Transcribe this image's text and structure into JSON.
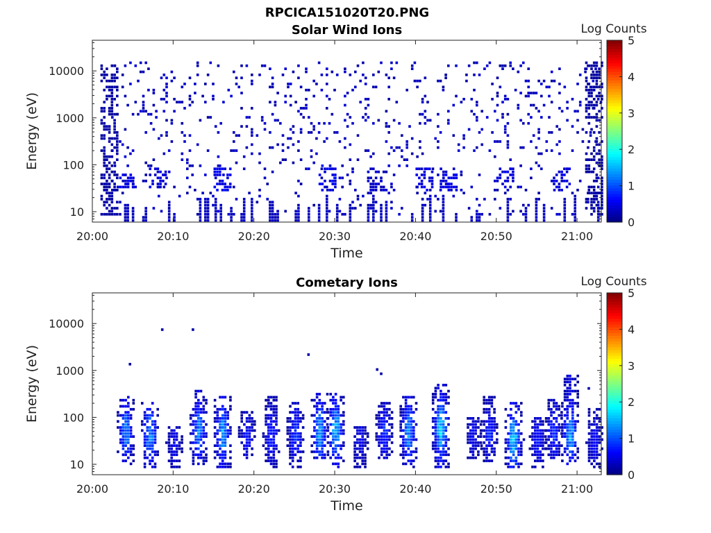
{
  "figure": {
    "title": "RPCICA151020T20.PNG"
  },
  "colorbar": {
    "label": "Log Counts",
    "range": [
      0,
      5
    ],
    "ticks": [
      "0",
      "1",
      "2",
      "3",
      "4",
      "5"
    ],
    "colormap": "jet"
  },
  "chart_data": [
    {
      "type": "heatmap",
      "title": "Solar Wind Ions",
      "xlabel": "Time",
      "ylabel": "Energy (eV)",
      "y_scale": "log",
      "y_range_eV": [
        6,
        45000
      ],
      "x_range": [
        "20:00",
        "21:03"
      ],
      "x_ticks": [
        "20:00",
        "20:10",
        "20:20",
        "20:30",
        "20:40",
        "20:50",
        "21:00"
      ],
      "y_ticks": [
        "10",
        "100",
        "1000",
        "10000"
      ],
      "data_start": "20:02",
      "data_end": "21:03",
      "description_points": [
        {
          "time": "20:02",
          "energy_range_eV": [
            7,
            12000
          ],
          "log_counts": 0.2
        },
        {
          "time": "20:04",
          "energy_range_eV": [
            30,
            60
          ],
          "log_counts": 0.5
        },
        {
          "time": "20:08",
          "energy_range_eV": [
            30,
            80
          ],
          "log_counts": 0.5
        },
        {
          "time": "20:16",
          "energy_range_eV": [
            25,
            90
          ],
          "log_counts": 0.6
        },
        {
          "time": "20:29",
          "energy_range_eV": [
            25,
            90
          ],
          "log_counts": 0.6
        },
        {
          "time": "20:35",
          "energy_range_eV": [
            20,
            70
          ],
          "log_counts": 0.4
        },
        {
          "time": "20:41",
          "energy_range_eV": [
            25,
            80
          ],
          "log_counts": 0.5
        },
        {
          "time": "20:44",
          "energy_range_eV": [
            25,
            80
          ],
          "log_counts": 0.5
        },
        {
          "time": "20:51",
          "energy_range_eV": [
            25,
            80
          ],
          "log_counts": 0.5
        },
        {
          "time": "20:58",
          "energy_range_eV": [
            25,
            80
          ],
          "log_counts": 0.5
        },
        {
          "time": "21:02",
          "energy_range_eV": [
            7,
            15000
          ],
          "log_counts": 0.2
        }
      ]
    },
    {
      "type": "heatmap",
      "title": "Cometary Ions",
      "xlabel": "Time",
      "ylabel": "Energy (eV)",
      "y_scale": "log",
      "y_range_eV": [
        6,
        45000
      ],
      "x_range": [
        "20:00",
        "21:03"
      ],
      "x_ticks": [
        "20:00",
        "20:10",
        "20:20",
        "20:30",
        "20:40",
        "20:50",
        "21:00"
      ],
      "y_ticks": [
        "10",
        "100",
        "1000",
        "10000"
      ],
      "bursts": [
        {
          "time": "20:04",
          "energy_range_eV": [
            9,
            250
          ],
          "peak_eV": 45,
          "peak_log_counts": 1.3
        },
        {
          "time": "20:07",
          "energy_range_eV": [
            7,
            200
          ],
          "peak_eV": 40,
          "peak_log_counts": 1.4
        },
        {
          "time": "20:10",
          "energy_range_eV": [
            7,
            60
          ],
          "peak_eV": 25,
          "peak_log_counts": 0.6
        },
        {
          "time": "20:13",
          "energy_range_eV": [
            9,
            350
          ],
          "peak_eV": 45,
          "peak_log_counts": 1.3
        },
        {
          "time": "20:16",
          "energy_range_eV": [
            8,
            300
          ],
          "peak_eV": 40,
          "peak_log_counts": 1.5
        },
        {
          "time": "20:19",
          "energy_range_eV": [
            12,
            120
          ],
          "peak_eV": 40,
          "peak_log_counts": 0.7
        },
        {
          "time": "20:22",
          "energy_range_eV": [
            8,
            250
          ],
          "peak_eV": 40,
          "peak_log_counts": 0.8
        },
        {
          "time": "20:25",
          "energy_range_eV": [
            8,
            200
          ],
          "peak_eV": 40,
          "peak_log_counts": 0.9
        },
        {
          "time": "20:28",
          "energy_range_eV": [
            12,
            300
          ],
          "peak_eV": 45,
          "peak_log_counts": 1.5
        },
        {
          "time": "20:30",
          "energy_range_eV": [
            8,
            300
          ],
          "peak_eV": 50,
          "peak_log_counts": 1.6
        },
        {
          "time": "20:33",
          "energy_range_eV": [
            8,
            60
          ],
          "peak_eV": 30,
          "peak_log_counts": 0.6
        },
        {
          "time": "20:36",
          "energy_range_eV": [
            12,
            200
          ],
          "peak_eV": 45,
          "peak_log_counts": 0.9
        },
        {
          "time": "20:39",
          "energy_range_eV": [
            8,
            250
          ],
          "peak_eV": 45,
          "peak_log_counts": 1.4
        },
        {
          "time": "20:43",
          "energy_range_eV": [
            8,
            500
          ],
          "peak_eV": 55,
          "peak_log_counts": 1.7
        },
        {
          "time": "20:47",
          "energy_range_eV": [
            12,
            100
          ],
          "peak_eV": 40,
          "peak_log_counts": 0.6
        },
        {
          "time": "20:49",
          "energy_range_eV": [
            10,
            250
          ],
          "peak_eV": 40,
          "peak_log_counts": 0.8
        },
        {
          "time": "20:52",
          "energy_range_eV": [
            8,
            200
          ],
          "peak_eV": 30,
          "peak_log_counts": 1.7
        },
        {
          "time": "20:55",
          "energy_range_eV": [
            7,
            90
          ],
          "peak_eV": 30,
          "peak_log_counts": 0.7
        },
        {
          "time": "20:57",
          "energy_range_eV": [
            12,
            220
          ],
          "peak_eV": 45,
          "peak_log_counts": 0.9
        },
        {
          "time": "20:59",
          "energy_range_eV": [
            8,
            800
          ],
          "peak_eV": 40,
          "peak_log_counts": 1.5
        },
        {
          "time": "21:02",
          "energy_range_eV": [
            8,
            150
          ],
          "peak_eV": 30,
          "peak_log_counts": 0.7
        }
      ]
    }
  ]
}
